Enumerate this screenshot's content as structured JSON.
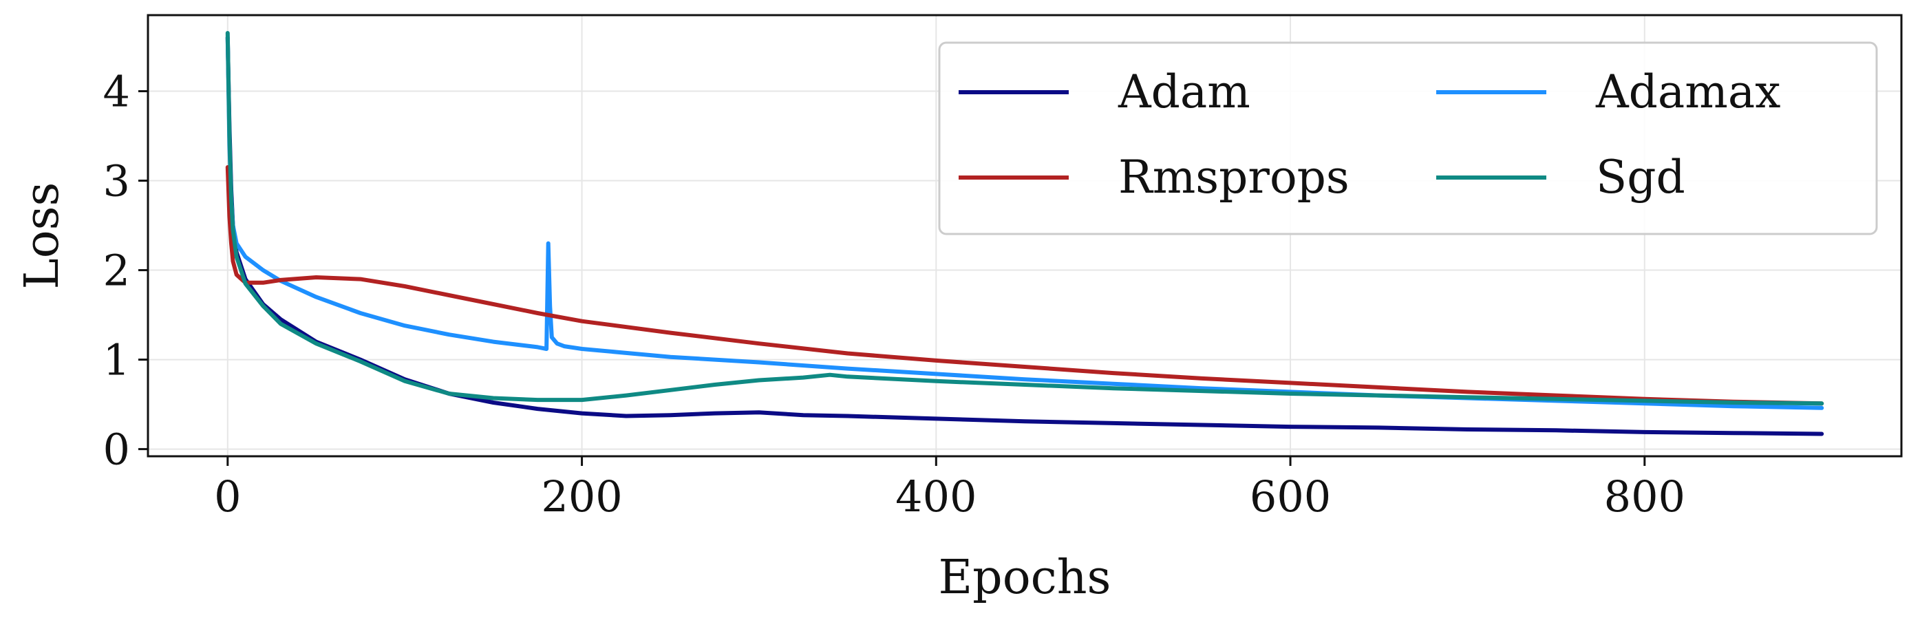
{
  "chart_data": {
    "type": "line",
    "title": "",
    "xlabel": "Epochs",
    "ylabel": "Loss",
    "xlim": [
      -45,
      945
    ],
    "ylim": [
      -0.08,
      4.85
    ],
    "xticks": [
      0,
      200,
      400,
      600,
      800
    ],
    "yticks": [
      0,
      1,
      2,
      3,
      4
    ],
    "grid": true,
    "legend": {
      "position": "top-right",
      "columns": 2
    },
    "series": [
      {
        "name": "Adam",
        "color": "#0b0b85",
        "x": [
          0,
          1,
          2,
          3,
          5,
          10,
          20,
          30,
          50,
          75,
          100,
          125,
          150,
          175,
          200,
          225,
          250,
          275,
          300,
          325,
          350,
          400,
          450,
          500,
          550,
          600,
          650,
          700,
          750,
          800,
          850,
          900
        ],
        "y": [
          4.6,
          3.6,
          2.9,
          2.5,
          2.2,
          1.9,
          1.62,
          1.45,
          1.2,
          1.0,
          0.78,
          0.62,
          0.52,
          0.45,
          0.4,
          0.37,
          0.38,
          0.4,
          0.41,
          0.38,
          0.37,
          0.34,
          0.31,
          0.29,
          0.27,
          0.25,
          0.24,
          0.22,
          0.21,
          0.19,
          0.18,
          0.17
        ]
      },
      {
        "name": "Adamax",
        "color": "#1e90ff",
        "x": [
          0,
          1,
          2,
          3,
          5,
          10,
          20,
          30,
          50,
          75,
          100,
          125,
          150,
          175,
          180,
          181,
          182,
          183,
          186,
          190,
          200,
          250,
          300,
          350,
          400,
          450,
          500,
          550,
          600,
          650,
          700,
          750,
          800,
          850,
          900
        ],
        "y": [
          4.6,
          3.4,
          2.8,
          2.5,
          2.3,
          2.15,
          2.0,
          1.88,
          1.7,
          1.52,
          1.38,
          1.28,
          1.2,
          1.14,
          1.12,
          2.3,
          1.6,
          1.25,
          1.18,
          1.15,
          1.12,
          1.03,
          0.97,
          0.9,
          0.84,
          0.78,
          0.73,
          0.68,
          0.64,
          0.6,
          0.57,
          0.54,
          0.51,
          0.48,
          0.46
        ]
      },
      {
        "name": "Rmsprops",
        "color": "#b22222",
        "x": [
          0,
          1,
          2,
          3,
          5,
          10,
          20,
          30,
          50,
          75,
          100,
          125,
          150,
          175,
          200,
          250,
          300,
          350,
          400,
          450,
          500,
          550,
          600,
          650,
          700,
          750,
          800,
          850,
          900
        ],
        "y": [
          3.15,
          2.6,
          2.3,
          2.1,
          1.95,
          1.86,
          1.86,
          1.89,
          1.92,
          1.9,
          1.82,
          1.72,
          1.62,
          1.52,
          1.43,
          1.3,
          1.18,
          1.07,
          0.99,
          0.92,
          0.85,
          0.79,
          0.74,
          0.69,
          0.64,
          0.6,
          0.56,
          0.53,
          0.51
        ]
      },
      {
        "name": "Sgd",
        "color": "#0f8a84",
        "x": [
          0,
          1,
          2,
          3,
          5,
          10,
          20,
          30,
          50,
          75,
          100,
          125,
          150,
          175,
          200,
          225,
          250,
          275,
          300,
          325,
          340,
          350,
          400,
          450,
          500,
          550,
          600,
          650,
          700,
          750,
          800,
          850,
          900
        ],
        "y": [
          4.65,
          3.5,
          2.8,
          2.45,
          2.15,
          1.85,
          1.6,
          1.4,
          1.18,
          0.98,
          0.76,
          0.62,
          0.57,
          0.55,
          0.55,
          0.6,
          0.66,
          0.72,
          0.77,
          0.8,
          0.83,
          0.81,
          0.76,
          0.72,
          0.68,
          0.65,
          0.62,
          0.6,
          0.58,
          0.56,
          0.54,
          0.52,
          0.51
        ]
      }
    ]
  }
}
